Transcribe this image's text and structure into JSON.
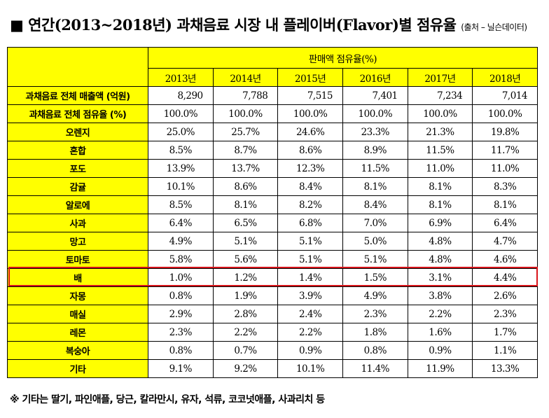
{
  "title": {
    "main": "■ 연간(2013~2018년) 과채음료 시장 내 플레이버(Flavor)별 점유율",
    "source": "(출처 – 닐슨데이터)"
  },
  "table": {
    "group_header": "판매액 점유율(%)",
    "years": [
      "2013년",
      "2014년",
      "2015년",
      "2016년",
      "2017년",
      "2018년"
    ],
    "rows": [
      {
        "label": "과채음료 전체 매출액 (억원)",
        "values": [
          "8,290",
          "7,788",
          "7,515",
          "7,401",
          "7,234",
          "7,014"
        ]
      },
      {
        "label": "과채음료 전체 점유율 (%)",
        "values": [
          "100.0%",
          "100.0%",
          "100.0%",
          "100.0%",
          "100.0%",
          "100.0%"
        ]
      },
      {
        "label": "오렌지",
        "values": [
          "25.0%",
          "25.7%",
          "24.6%",
          "23.3%",
          "21.3%",
          "19.8%"
        ]
      },
      {
        "label": "혼합",
        "values": [
          "8.5%",
          "8.7%",
          "8.6%",
          "8.9%",
          "11.5%",
          "11.7%"
        ]
      },
      {
        "label": "포도",
        "values": [
          "13.9%",
          "13.7%",
          "12.3%",
          "11.5%",
          "11.0%",
          "11.0%"
        ]
      },
      {
        "label": "감귤",
        "values": [
          "10.1%",
          "8.6%",
          "8.4%",
          "8.1%",
          "8.1%",
          "8.3%"
        ]
      },
      {
        "label": "알로에",
        "values": [
          "8.5%",
          "8.1%",
          "8.2%",
          "8.4%",
          "8.1%",
          "8.1%"
        ]
      },
      {
        "label": "사과",
        "values": [
          "6.4%",
          "6.5%",
          "6.8%",
          "7.0%",
          "6.9%",
          "6.4%"
        ]
      },
      {
        "label": "망고",
        "values": [
          "4.9%",
          "5.1%",
          "5.1%",
          "5.0%",
          "4.8%",
          "4.7%"
        ]
      },
      {
        "label": "토마토",
        "values": [
          "5.8%",
          "5.6%",
          "5.1%",
          "5.1%",
          "4.8%",
          "4.6%"
        ]
      },
      {
        "label": "배",
        "values": [
          "1.0%",
          "1.2%",
          "1.4%",
          "1.5%",
          "3.1%",
          "4.4%"
        ]
      },
      {
        "label": "자몽",
        "values": [
          "0.8%",
          "1.9%",
          "3.9%",
          "4.9%",
          "3.8%",
          "2.6%"
        ]
      },
      {
        "label": "매실",
        "values": [
          "2.9%",
          "2.8%",
          "2.4%",
          "2.3%",
          "2.2%",
          "2.3%"
        ]
      },
      {
        "label": "레몬",
        "values": [
          "2.3%",
          "2.2%",
          "2.2%",
          "1.8%",
          "1.6%",
          "1.7%"
        ]
      },
      {
        "label": "복숭아",
        "values": [
          "0.8%",
          "0.7%",
          "0.9%",
          "0.8%",
          "0.9%",
          "1.1%"
        ]
      },
      {
        "label": "기타",
        "values": [
          "9.1%",
          "9.2%",
          "10.1%",
          "11.4%",
          "11.9%",
          "13.3%"
        ]
      }
    ],
    "highlighted_row": "배",
    "colors": {
      "header_bg": "#ffff00",
      "highlight_border": "#d9151b"
    }
  },
  "note": "※ 기타는 딸기, 파인애플, 당근, 칼라만시, 유자, 석류, 코코넛애플, 사과리치 등"
}
